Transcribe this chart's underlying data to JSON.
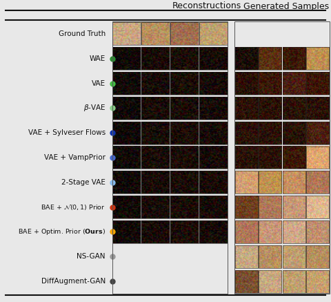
{
  "background_color": "#e8e8e8",
  "header_line_color": "#111111",
  "col_headers": [
    "Reconstructions",
    "Generated Samples"
  ],
  "rows": [
    {
      "label": "Ground Truth",
      "dot_color": null,
      "has_recon": true,
      "has_gen": false
    },
    {
      "label": "WAE",
      "dot_color": "#2a8a30",
      "has_recon": true,
      "has_gen": true
    },
    {
      "label": "VAE",
      "dot_color": "#44bb44",
      "has_recon": true,
      "has_gen": true
    },
    {
      "label": "$\\beta$-VAE",
      "dot_color": "#88cc88",
      "has_recon": true,
      "has_gen": true
    },
    {
      "label": "VAE + Sylveser Flows",
      "dot_color": "#1133aa",
      "has_recon": true,
      "has_gen": true
    },
    {
      "label": "VAE + VampPrior",
      "dot_color": "#4466cc",
      "has_recon": true,
      "has_gen": true
    },
    {
      "label": "2-Stage VAE",
      "dot_color": "#88bbee",
      "has_recon": true,
      "has_gen": true
    },
    {
      "label": "BAE + $\\mathcal{N}(0, 1)$ Prior",
      "dot_color": "#cc3311",
      "has_recon": true,
      "has_gen": true
    },
    {
      "label": "BAE + Optim. Prior (\\textbf{Ours})",
      "dot_color": "#f5a500",
      "has_recon": true,
      "has_gen": true
    },
    {
      "label": "NS-GAN",
      "dot_color": "#999999",
      "has_recon": false,
      "has_gen": true
    },
    {
      "label": "DiffAugment-GAN",
      "dot_color": "#444444",
      "has_recon": false,
      "has_gen": true
    }
  ],
  "recon_face_colors": [
    [
      "#c8a882",
      "#b89060",
      "#a07050",
      "#c0a070"
    ],
    [
      "#100500",
      "#180800",
      "#1a0a00",
      "#160700"
    ],
    [
      "#100500",
      "#180800",
      "#1a0a00",
      "#160700"
    ],
    [
      "#100500",
      "#180800",
      "#1a0a00",
      "#160700"
    ],
    [
      "#100500",
      "#180800",
      "#1a0a00",
      "#160700"
    ],
    [
      "#100500",
      "#180800",
      "#1a0a00",
      "#160700"
    ],
    [
      "#100500",
      "#180800",
      "#1a0a00",
      "#160700"
    ],
    [
      "#100500",
      "#180800",
      "#1a0a00",
      "#160700"
    ],
    [
      "#100500",
      "#180800",
      "#1a0a00",
      "#160700"
    ]
  ],
  "gen_face_colors": [
    [
      "#1a0800",
      "#5a3010",
      "#3a1800",
      "#c09050"
    ],
    [
      "#2a1000",
      "#3a1800",
      "#4a2010",
      "#3a1800"
    ],
    [
      "#2a1000",
      "#2a1000",
      "#2a1200",
      "#2a1000"
    ],
    [
      "#2a1000",
      "#2a1000",
      "#2a1200",
      "#4a2010"
    ],
    [
      "#2a1000",
      "#2a1000",
      "#3a1800",
      "#e0a870"
    ],
    [
      "#d4a070",
      "#c09050",
      "#c89060",
      "#b07858"
    ],
    [
      "#704020",
      "#b07858",
      "#c89878",
      "#e0b890"
    ],
    [
      "#b07858",
      "#c89878",
      "#d0a888",
      "#c09070"
    ],
    [
      "#c8a882",
      "#b89060",
      "#c0a070",
      "#b89060"
    ],
    [
      "#7a5030",
      "#c8a882",
      "#c0a070",
      "#c8a070"
    ]
  ],
  "figsize": [
    4.8,
    4.37
  ],
  "dpi": 100
}
